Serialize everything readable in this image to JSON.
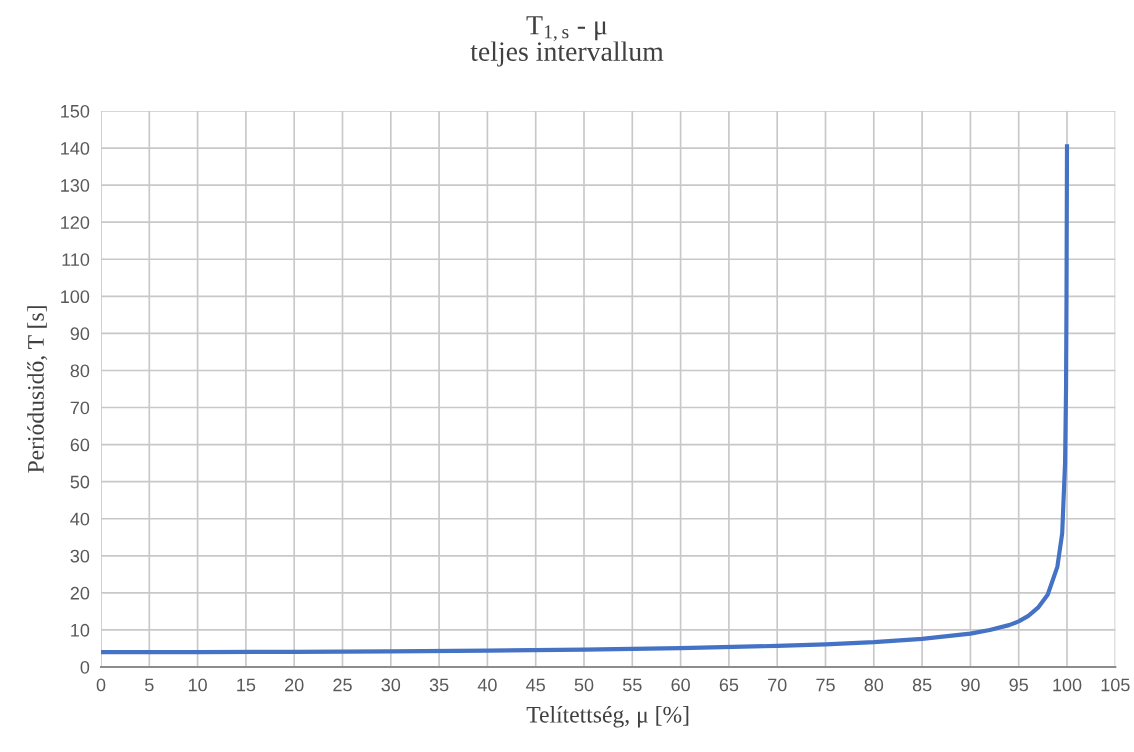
{
  "chart_data": {
    "type": "line",
    "title": "T$_{1,s}$ - μ\nteljes intervallum",
    "xlabel": "Telítettség, μ [%]",
    "ylabel": "Periódusidő, T [s]",
    "series": [
      {
        "color": "#4472c4",
        "x": [
          0,
          10,
          20,
          30,
          40,
          50,
          60,
          70,
          75,
          80,
          85,
          90,
          92,
          94,
          95,
          96,
          97,
          98,
          99,
          99.5,
          99.8,
          99.9,
          99.95,
          100
        ],
        "values": [
          4.0,
          4.0,
          4.1,
          4.2,
          4.4,
          4.7,
          5.1,
          5.7,
          6.1,
          6.7,
          7.6,
          9.0,
          10.0,
          11.3,
          12.3,
          13.8,
          16,
          19.5,
          27,
          36,
          55,
          75,
          100,
          141
        ]
      }
    ],
    "xlim": [
      0,
      105
    ],
    "xticks": [
      0,
      5,
      10,
      15,
      20,
      25,
      30,
      35,
      40,
      45,
      50,
      55,
      60,
      65,
      70,
      75,
      80,
      85,
      90,
      95,
      100,
      105
    ],
    "ylim": [
      0,
      150
    ],
    "yticks": [
      0,
      10,
      20,
      30,
      40,
      50,
      60,
      70,
      80,
      90,
      100,
      110,
      120,
      130,
      140,
      150
    ],
    "grid": true,
    "marker": "none",
    "line_style": "solid"
  }
}
